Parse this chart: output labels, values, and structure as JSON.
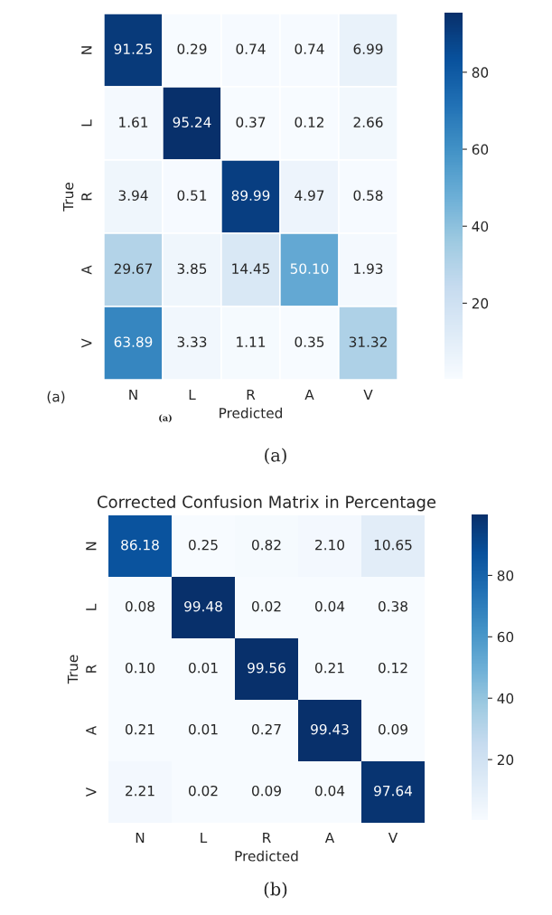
{
  "chart_data": [
    {
      "type": "heatmap",
      "xlabel": "Predicted",
      "ylabel": "True",
      "categories": [
        "N",
        "L",
        "R",
        "A",
        "V"
      ],
      "y_categories": [
        "N",
        "L",
        "R",
        "A",
        "V"
      ],
      "cells": [
        [
          91.25,
          0.29,
          0.74,
          0.74,
          6.99
        ],
        [
          1.61,
          95.24,
          0.37,
          0.12,
          2.66
        ],
        [
          3.94,
          0.51,
          89.99,
          4.97,
          0.58
        ],
        [
          29.67,
          3.85,
          14.45,
          50.1,
          1.93
        ],
        [
          63.89,
          3.33,
          1.11,
          0.35,
          31.32
        ]
      ],
      "cell_labels": [
        [
          "91.25",
          "0.29",
          "0.74",
          "0.74",
          "6.99"
        ],
        [
          "1.61",
          "95.24",
          "0.37",
          "0.12",
          "2.66"
        ],
        [
          "3.94",
          "0.51",
          "89.99",
          "4.97",
          "0.58"
        ],
        [
          "29.67",
          "3.85",
          "14.45",
          "50.10",
          "1.93"
        ],
        [
          "63.89",
          "3.33",
          "1.11",
          "0.35",
          "31.32"
        ]
      ],
      "clim": [
        0.12,
        95.24
      ],
      "cticks": [
        20,
        40,
        60,
        80
      ],
      "annotations": [
        "(a)",
        "(a)",
        "(a)"
      ]
    },
    {
      "type": "heatmap",
      "title": "Corrected Confusion Matrix in Percentage",
      "xlabel": "Predicted",
      "ylabel": "True",
      "categories": [
        "N",
        "L",
        "R",
        "A",
        "V"
      ],
      "y_categories": [
        "N",
        "L",
        "R",
        "A",
        "V"
      ],
      "cells": [
        [
          86.18,
          0.25,
          0.82,
          2.1,
          10.65
        ],
        [
          0.08,
          99.48,
          0.02,
          0.04,
          0.38
        ],
        [
          0.1,
          0.01,
          99.56,
          0.21,
          0.12
        ],
        [
          0.21,
          0.01,
          0.27,
          99.43,
          0.09
        ],
        [
          2.21,
          0.02,
          0.09,
          0.04,
          97.64
        ]
      ],
      "cell_labels": [
        [
          "86.18",
          "0.25",
          "0.82",
          "2.10",
          "10.65"
        ],
        [
          "0.08",
          "99.48",
          "0.02",
          "0.04",
          "0.38"
        ],
        [
          "0.10",
          "0.01",
          "99.56",
          "0.21",
          "0.12"
        ],
        [
          "0.21",
          "0.01",
          "0.27",
          "99.43",
          "0.09"
        ],
        [
          "2.21",
          "0.02",
          "0.09",
          "0.04",
          "97.64"
        ]
      ],
      "clim": [
        0.01,
        99.56
      ],
      "cticks": [
        20,
        40,
        60,
        80
      ],
      "annotations": [
        "(b)"
      ]
    }
  ]
}
